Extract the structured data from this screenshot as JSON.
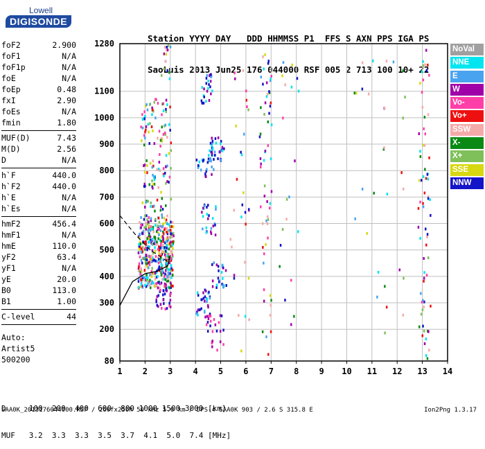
{
  "logo": {
    "line1": "Lowell",
    "line2": "DIGISONDE"
  },
  "header": {
    "line1": "Station YYYY DAY   DDD HHMMSS P1  FFS S AXN PPS IGA PS",
    "line2": "SaoLuis 2013 Jun25 176 044000 RSF 005 2 713 100 10+ 22"
  },
  "params": [
    {
      "name": "foF2",
      "value": "2.900"
    },
    {
      "name": "foF1",
      "value": "N/A"
    },
    {
      "name": "foF1p",
      "value": "N/A"
    },
    {
      "name": "foE",
      "value": "N/A"
    },
    {
      "name": "foEp",
      "value": "0.48"
    },
    {
      "name": "fxI",
      "value": "2.90"
    },
    {
      "name": "foEs",
      "value": "N/A"
    },
    {
      "name": "fmin",
      "value": "1.80"
    },
    {
      "sep": true
    },
    {
      "name": "MUF(D)",
      "value": "7.43"
    },
    {
      "name": "M(D)",
      "value": "2.56"
    },
    {
      "name": "D",
      "value": "N/A"
    },
    {
      "sep": true
    },
    {
      "name": "h`F",
      "value": "440.0"
    },
    {
      "name": "h`F2",
      "value": "440.0"
    },
    {
      "name": "h`E",
      "value": "N/A"
    },
    {
      "name": "h`Es",
      "value": "N/A"
    },
    {
      "sep": true
    },
    {
      "name": "hmF2",
      "value": "456.4"
    },
    {
      "name": "hmF1",
      "value": "N/A"
    },
    {
      "name": "hmE",
      "value": "110.0"
    },
    {
      "name": "yF2",
      "value": "63.4"
    },
    {
      "name": "yF1",
      "value": "N/A"
    },
    {
      "name": "yE",
      "value": "20.0"
    },
    {
      "name": "B0",
      "value": "113.0"
    },
    {
      "name": "B1",
      "value": "1.00"
    },
    {
      "sep": true
    },
    {
      "name": "C-level",
      "value": "44"
    },
    {
      "sep": true
    }
  ],
  "auto": {
    "line1": "Auto:",
    "line2": "Artist5",
    "line3": "500200"
  },
  "dmuf": {
    "d_line": "D     100  200  400  600  800 1000 1500 3000 [km]",
    "muf_line": "MUF   3.2  3.3  3.3  3.5  3.7  4.1  5.0  7.4 [MHz]"
  },
  "footer": {
    "text": "SAA0K_2013176044000.RSF / 260fx256h 50 kHz 5.0 km / DPS-4 SAA0K 903 / 2.6 S 315.8 E",
    "version": "Ion2Png 1.3.17"
  },
  "legend": [
    {
      "label": "NoVal",
      "color": "#a0a0a0"
    },
    {
      "label": "NNE",
      "color": "#00e5f0"
    },
    {
      "label": "E",
      "color": "#4aa3ee"
    },
    {
      "label": "W",
      "color": "#a000a8"
    },
    {
      "label": "Vo-",
      "color": "#ff3fa8"
    },
    {
      "label": "Vo+",
      "color": "#ee1010"
    },
    {
      "label": "SSW",
      "color": "#f5aaaa"
    },
    {
      "label": "X-",
      "color": "#0a8a14"
    },
    {
      "label": "X+",
      "color": "#7fc05a"
    },
    {
      "label": "SSE",
      "color": "#d8d810"
    },
    {
      "label": "NNW",
      "color": "#1414c8"
    }
  ],
  "chart_data": {
    "type": "scatter",
    "xlabel": "",
    "ylabel": "",
    "xlim": [
      1,
      14
    ],
    "ylim": [
      80,
      1280
    ],
    "x_ticks": [
      1,
      2,
      3,
      4,
      5,
      6,
      7,
      8,
      9,
      10,
      11,
      12,
      13,
      14
    ],
    "y_ticks": [
      80,
      200,
      300,
      400,
      500,
      600,
      700,
      800,
      900,
      1000,
      1100,
      1280
    ],
    "grid": true,
    "clusters": [
      {
        "x_range": [
          1.7,
          3.1
        ],
        "y_range": [
          360,
          620
        ],
        "n": 420,
        "palette": "mixed"
      },
      {
        "x_range": [
          1.8,
          3.0
        ],
        "y_range": [
          620,
          1080
        ],
        "n": 140,
        "palette": "mixed"
      },
      {
        "x_range": [
          2.4,
          3.0
        ],
        "y_range": [
          280,
          380
        ],
        "n": 35,
        "palette": "purple"
      },
      {
        "x_range": [
          2.6,
          3.0
        ],
        "y_range": [
          1150,
          1280
        ],
        "n": 15,
        "palette": "mixed"
      }
    ],
    "traces": [
      {
        "x_range": [
          4.0,
          4.7
        ],
        "y_range": [
          780,
          910
        ],
        "n": 30,
        "palette": "blue"
      },
      {
        "x_range": [
          4.0,
          4.6
        ],
        "y_range": [
          250,
          360
        ],
        "n": 30,
        "palette": "blue"
      },
      {
        "x_range": [
          4.6,
          5.1
        ],
        "y_range": [
          840,
          930
        ],
        "n": 25,
        "palette": "blue"
      },
      {
        "x_range": [
          4.2,
          4.7
        ],
        "y_range": [
          1060,
          1170
        ],
        "n": 25,
        "palette": "blue"
      },
      {
        "x_range": [
          4.2,
          4.8
        ],
        "y_range": [
          560,
          680
        ],
        "n": 25,
        "palette": "blue"
      },
      {
        "x_range": [
          4.6,
          5.2
        ],
        "y_range": [
          360,
          460
        ],
        "n": 25,
        "palette": "blue"
      },
      {
        "x_range": [
          4.4,
          5.1
        ],
        "y_range": [
          120,
          260
        ],
        "n": 25,
        "palette": "purple"
      },
      {
        "x_range": [
          5.3,
          6.1
        ],
        "y_range": [
          120,
          1200
        ],
        "n": 30,
        "palette": "mixed"
      },
      {
        "x_range": [
          6.5,
          7.0
        ],
        "y_range": [
          90,
          1270
        ],
        "n": 60,
        "palette": "mixed"
      },
      {
        "x_range": [
          7.3,
          8.1
        ],
        "y_range": [
          200,
          1250
        ],
        "n": 20,
        "palette": "mixed"
      },
      {
        "x_range": [
          10.0,
          12.3
        ],
        "y_range": [
          140,
          1250
        ],
        "n": 30,
        "palette": "mixed"
      },
      {
        "x_range": [
          12.8,
          13.3
        ],
        "y_range": [
          90,
          1270
        ],
        "n": 70,
        "palette": "mixed"
      }
    ],
    "profile_line_points": [
      [
        1.0,
        290
      ],
      [
        1.5,
        380
      ],
      [
        2.0,
        410
      ],
      [
        2.5,
        420
      ],
      [
        2.9,
        440
      ],
      [
        3.0,
        480
      ]
    ],
    "profile_dashed_points": [
      [
        1.0,
        630
      ],
      [
        1.6,
        560
      ],
      [
        2.2,
        500
      ],
      [
        2.9,
        456
      ]
    ]
  }
}
